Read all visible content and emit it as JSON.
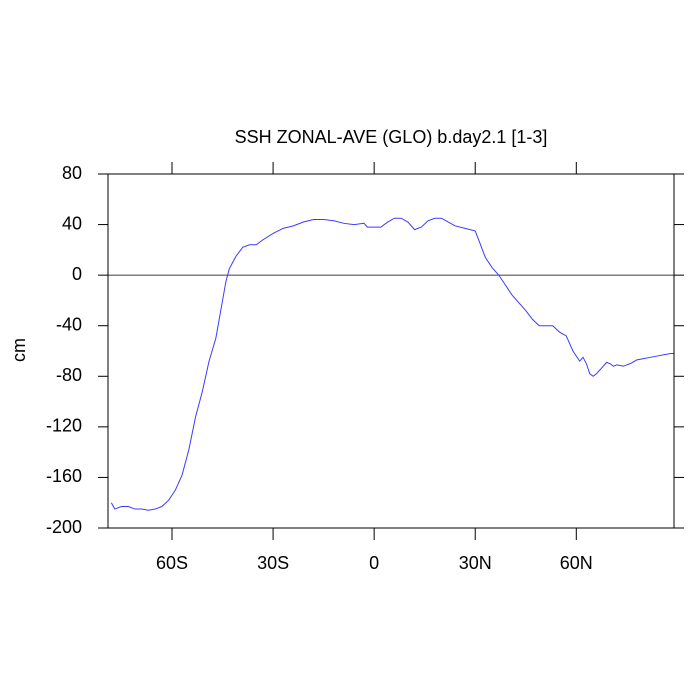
{
  "chart_data": {
    "type": "line",
    "title": "SSH ZONAL-AVE (GLO) b.day2.1 [1-3]",
    "y_label": "cm",
    "x": [
      -78,
      -77,
      -75,
      -73,
      -71,
      -69,
      -67,
      -65,
      -63,
      -61,
      -59,
      -57,
      -55,
      -53,
      -51,
      -49,
      -47,
      -45,
      -44,
      -43,
      -41,
      -39,
      -37,
      -35,
      -33,
      -30,
      -27,
      -24,
      -21,
      -18,
      -15,
      -12,
      -9,
      -6,
      -3,
      -2,
      0,
      2,
      4,
      6,
      8,
      10,
      12,
      14,
      16,
      18,
      20,
      22,
      24,
      27,
      30,
      31,
      33,
      35,
      37,
      39,
      41,
      43,
      45,
      47,
      49,
      51,
      53,
      55,
      57,
      59,
      61,
      62,
      63,
      64,
      65,
      66,
      68,
      69,
      70,
      71,
      72,
      74,
      76,
      78,
      80,
      82,
      84,
      86,
      88,
      89
    ],
    "series": [
      {
        "color": "#3b3bff",
        "values": [
          -180,
          -185,
          -183,
          -183,
          -185,
          -185,
          -186,
          -185,
          -183,
          -178,
          -170,
          -158,
          -138,
          -112,
          -92,
          -68,
          -50,
          -20,
          -5,
          5,
          15,
          22,
          24,
          24,
          28,
          33,
          37,
          39,
          42,
          44,
          44,
          43,
          41,
          40,
          41,
          38,
          38,
          38,
          42,
          45,
          45,
          42,
          36,
          38,
          43,
          45,
          45,
          42,
          39,
          37,
          35,
          28,
          14,
          6,
          0,
          -8,
          -16,
          -22,
          -28,
          -35,
          -40,
          -40,
          -40,
          -45,
          -48,
          -60,
          -68,
          -65,
          -70,
          -78,
          -80,
          -78,
          -72,
          -69,
          -70,
          -72,
          -71,
          -72,
          -70,
          -67,
          -66,
          -65,
          -64,
          -63,
          -62,
          -62
        ]
      }
    ],
    "xlim": [
      -79,
      89
    ],
    "ylim": [
      -200,
      80
    ],
    "xticks": [
      {
        "value": -60,
        "label": "60S"
      },
      {
        "value": -30,
        "label": "30S"
      },
      0,
      {
        "value": 30,
        "label": "30N"
      },
      {
        "value": 60,
        "label": "60N"
      }
    ],
    "yticks": [
      -200,
      -160,
      -120,
      -80,
      -40,
      0,
      40,
      80
    ],
    "zero_line": true
  }
}
